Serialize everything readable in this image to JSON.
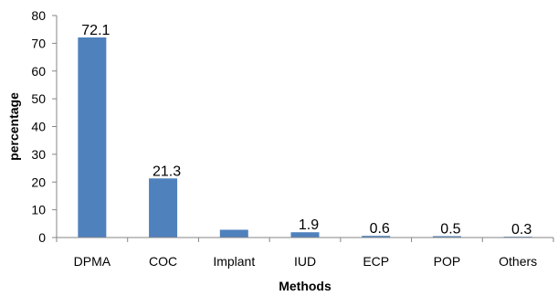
{
  "chart_data": {
    "type": "bar",
    "categories": [
      "DPMA",
      "COC",
      "Implant",
      "IUD",
      "ECP",
      "POP",
      "Others"
    ],
    "values": [
      72.1,
      21.3,
      2.8,
      1.9,
      0.6,
      0.5,
      0.3
    ],
    "data_labels": [
      "72.1",
      "21.3",
      "",
      "1.9",
      "0.6",
      "0.5",
      "0.3"
    ],
    "xlabel": "Methods",
    "ylabel": "percentage",
    "ylim": [
      0,
      80
    ],
    "yticks": [
      0,
      10,
      20,
      30,
      40,
      50,
      60,
      70,
      80
    ],
    "grid": false,
    "legend": "none",
    "colors": {
      "bar": "#4F81BD",
      "axis": "#868686",
      "text": "#000000"
    }
  }
}
